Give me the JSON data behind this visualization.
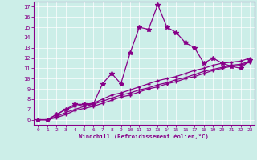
{
  "xlabel": "Windchill (Refroidissement éolien,°C)",
  "bg_color": "#cceee8",
  "line_color": "#880088",
  "xlim": [
    -0.5,
    23.5
  ],
  "ylim": [
    5.5,
    17.5
  ],
  "xticks": [
    0,
    1,
    2,
    3,
    4,
    5,
    6,
    7,
    8,
    9,
    10,
    11,
    12,
    13,
    14,
    15,
    16,
    17,
    18,
    19,
    20,
    21,
    22,
    23
  ],
  "yticks": [
    6,
    7,
    8,
    9,
    10,
    11,
    12,
    13,
    14,
    15,
    16,
    17
  ],
  "series1_x": [
    0,
    1,
    2,
    3,
    4,
    5,
    6,
    7,
    8,
    9,
    10,
    11,
    12,
    13,
    14,
    15,
    16,
    17,
    18,
    19,
    20,
    21,
    22,
    23
  ],
  "series1_y": [
    6.0,
    6.0,
    6.5,
    7.0,
    7.5,
    7.5,
    7.5,
    9.5,
    10.5,
    9.5,
    12.5,
    15.0,
    14.8,
    17.2,
    15.0,
    14.5,
    13.5,
    13.0,
    11.5,
    12.0,
    11.5,
    11.2,
    11.0,
    11.8
  ],
  "series2_x": [
    0,
    1,
    2,
    3,
    4,
    5,
    6,
    7,
    8,
    9,
    10,
    11,
    12,
    13,
    14,
    15,
    16,
    17,
    18,
    19,
    20,
    21,
    22,
    23
  ],
  "series2_y": [
    6.0,
    6.0,
    6.5,
    7.0,
    7.3,
    7.5,
    7.6,
    8.0,
    8.4,
    8.6,
    8.9,
    9.2,
    9.5,
    9.8,
    10.0,
    10.2,
    10.5,
    10.8,
    11.0,
    11.3,
    11.5,
    11.6,
    11.7,
    12.0
  ],
  "series3_x": [
    0,
    1,
    2,
    3,
    4,
    5,
    6,
    7,
    8,
    9,
    10,
    11,
    12,
    13,
    14,
    15,
    16,
    17,
    18,
    19,
    20,
    21,
    22,
    23
  ],
  "series3_y": [
    6.0,
    6.0,
    6.3,
    6.7,
    7.0,
    7.3,
    7.5,
    7.8,
    8.1,
    8.4,
    8.6,
    8.9,
    9.1,
    9.4,
    9.6,
    9.9,
    10.1,
    10.4,
    10.7,
    10.9,
    11.1,
    11.3,
    11.4,
    11.7
  ],
  "series4_x": [
    0,
    1,
    2,
    3,
    4,
    5,
    6,
    7,
    8,
    9,
    10,
    11,
    12,
    13,
    14,
    15,
    16,
    17,
    18,
    19,
    20,
    21,
    22,
    23
  ],
  "series4_y": [
    6.0,
    6.0,
    6.2,
    6.5,
    6.9,
    7.1,
    7.3,
    7.6,
    7.9,
    8.2,
    8.4,
    8.7,
    9.0,
    9.2,
    9.5,
    9.7,
    10.0,
    10.2,
    10.5,
    10.8,
    11.0,
    11.2,
    11.3,
    11.6
  ]
}
